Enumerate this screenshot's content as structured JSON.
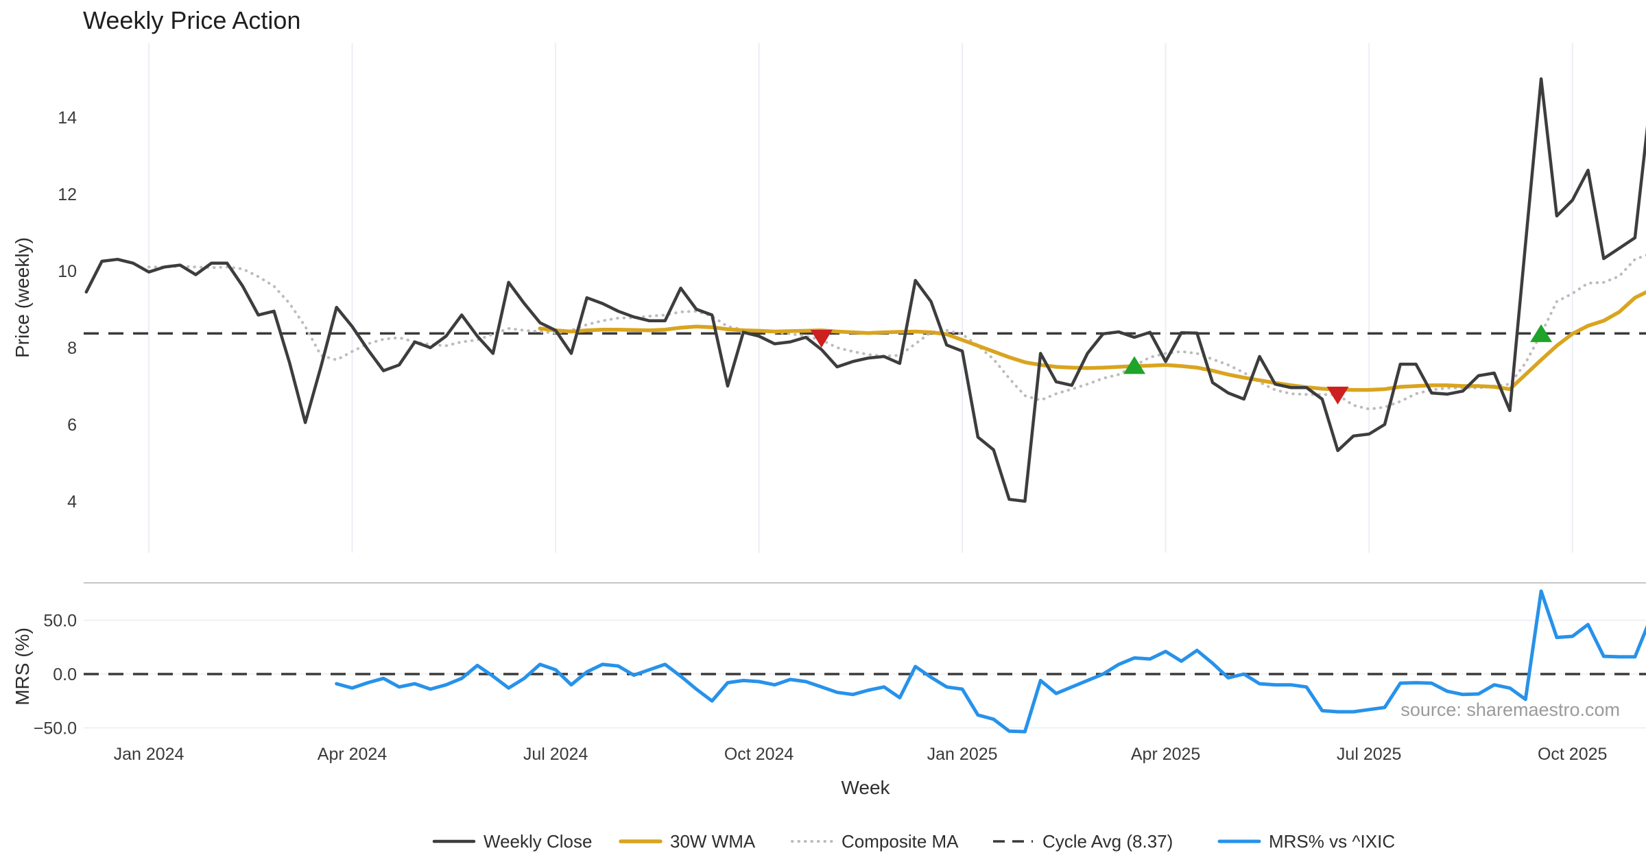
{
  "title": "Weekly Price Action",
  "source_note": "source: sharemaestro.com",
  "colors": {
    "weekly_close": "#3d3d3d",
    "wma_30w": "#d9a41f",
    "composite_ma": "#bcbcbc",
    "cycle_avg": "#3a3a3a",
    "mrs": "#2792ea",
    "sell_marker": "#cd2020",
    "buy_marker": "#1fa32a"
  },
  "legend": [
    {
      "label": "Weekly Close",
      "type": "solid-dark"
    },
    {
      "label": "30W WMA",
      "type": "solid-gold"
    },
    {
      "label": "Composite MA",
      "type": "dotted-gray"
    },
    {
      "label": "Cycle Avg (8.37)",
      "type": "dashed-dark"
    },
    {
      "label": "MRS% vs ^IXIC",
      "type": "solid-blue"
    }
  ],
  "chart_data": {
    "type": "line",
    "title": "Weekly Price Action",
    "xlabel": "Week",
    "x_unit": "weeks_from_2024-01-01",
    "x_ticks": [
      {
        "week": 0,
        "label": "Jan 2024"
      },
      {
        "week": 13,
        "label": "Apr 2024"
      },
      {
        "week": 26,
        "label": "Jul 2024"
      },
      {
        "week": 39,
        "label": "Oct 2024"
      },
      {
        "week": 52,
        "label": "Jan 2025"
      },
      {
        "week": 65,
        "label": "Apr 2025"
      },
      {
        "week": 78,
        "label": "Jul 2025"
      },
      {
        "week": 91,
        "label": "Oct 2025"
      }
    ],
    "panels": [
      {
        "name": "price",
        "ylabel": "Price (weekly)",
        "ylim": [
          2.7,
          15.9
        ],
        "yticks": [
          4,
          6,
          8,
          10,
          12,
          14
        ],
        "grid": "vertical",
        "cycle_avg": 8.37
      },
      {
        "name": "mrs",
        "ylabel": "MRS (%)",
        "ylim": [
          -62,
          84
        ],
        "yticks": [
          {
            "value": 50,
            "label": "50.0"
          },
          {
            "value": 0,
            "label": "0.0"
          },
          {
            "value": -50,
            "label": "−50.0"
          }
        ],
        "grid": "horizontal",
        "zero_line": 0
      }
    ],
    "series": {
      "weekly_close": {
        "label": "Weekly Close",
        "panel": "price",
        "start_week": -4,
        "values": [
          9.45,
          10.25,
          10.3,
          10.2,
          9.97,
          10.1,
          10.15,
          9.9,
          10.2,
          10.2,
          9.6,
          8.85,
          8.95,
          7.6,
          6.05,
          7.5,
          9.05,
          8.55,
          7.95,
          7.4,
          7.55,
          8.15,
          8.0,
          8.3,
          8.85,
          8.3,
          7.85,
          9.7,
          9.15,
          8.65,
          8.45,
          7.85,
          9.3,
          9.15,
          8.95,
          8.8,
          8.7,
          8.7,
          9.55,
          9.0,
          8.85,
          7.0,
          8.4,
          8.3,
          8.1,
          8.15,
          8.27,
          7.95,
          7.5,
          7.64,
          7.73,
          7.77,
          7.59,
          9.75,
          9.2,
          8.07,
          7.91,
          5.67,
          5.34,
          4.05,
          4.0,
          7.85,
          7.11,
          7.02,
          7.85,
          8.36,
          8.41,
          8.27,
          8.4,
          7.64,
          8.39,
          8.38,
          7.09,
          6.82,
          6.66,
          7.77,
          7.05,
          6.96,
          6.96,
          6.66,
          5.32,
          5.7,
          5.75,
          6.0,
          7.57,
          7.57,
          6.82,
          6.79,
          6.87,
          7.27,
          7.34,
          6.36,
          10.7,
          15.0,
          11.43,
          11.84,
          12.62,
          10.32,
          10.59,
          10.86,
          14.5
        ]
      },
      "wma_30w": {
        "label": "30W WMA",
        "panel": "price",
        "start_week": 25,
        "values": [
          8.5,
          8.45,
          8.42,
          8.45,
          8.47,
          8.47,
          8.46,
          8.45,
          8.47,
          8.52,
          8.55,
          8.53,
          8.48,
          8.45,
          8.44,
          8.42,
          8.43,
          8.44,
          8.45,
          8.42,
          8.4,
          8.38,
          8.4,
          8.41,
          8.42,
          8.4,
          8.35,
          8.2,
          8.05,
          7.9,
          7.75,
          7.62,
          7.55,
          7.5,
          7.48,
          7.47,
          7.48,
          7.5,
          7.52,
          7.53,
          7.55,
          7.52,
          7.48,
          7.4,
          7.3,
          7.22,
          7.15,
          7.08,
          7.02,
          6.97,
          6.93,
          6.91,
          6.9,
          6.9,
          6.92,
          6.98,
          7.0,
          7.02,
          7.02,
          7.0,
          7.0,
          6.98,
          6.92,
          7.3,
          7.68,
          8.05,
          8.36,
          8.57,
          8.7,
          8.93,
          9.3,
          9.5
        ]
      },
      "composite_ma": {
        "label": "Composite MA",
        "panel": "price",
        "start_week": 0,
        "values": [
          10.1,
          10.1,
          10.12,
          10.1,
          10.08,
          10.1,
          10.05,
          9.85,
          9.6,
          9.15,
          8.55,
          7.8,
          7.68,
          7.9,
          8.1,
          8.22,
          8.26,
          8.15,
          8.08,
          8.05,
          8.15,
          8.2,
          8.35,
          8.5,
          8.45,
          8.42,
          8.38,
          8.45,
          8.6,
          8.7,
          8.77,
          8.78,
          8.82,
          8.85,
          8.93,
          8.95,
          8.82,
          8.55,
          8.47,
          8.44,
          8.4,
          8.36,
          8.3,
          8.2,
          8.0,
          7.9,
          7.82,
          7.78,
          7.8,
          8.1,
          8.4,
          8.45,
          8.35,
          8.05,
          7.7,
          7.2,
          6.75,
          6.63,
          6.8,
          6.92,
          7.05,
          7.2,
          7.3,
          7.53,
          7.75,
          7.85,
          7.9,
          7.85,
          7.7,
          7.55,
          7.35,
          7.1,
          6.9,
          6.8,
          6.78,
          6.78,
          6.77,
          6.5,
          6.4,
          6.45,
          6.6,
          6.8,
          6.9,
          6.95,
          6.95,
          6.95,
          7.0,
          7.05,
          7.6,
          8.36,
          9.2,
          9.41,
          9.68,
          9.7,
          9.86,
          10.3,
          10.45
        ]
      },
      "cycle_avg": {
        "label": "Cycle Avg (8.37)",
        "panel": "price",
        "value": 8.37
      },
      "mrs": {
        "label": "MRS% vs ^IXIC",
        "panel": "mrs",
        "start_week": 12,
        "values": [
          -9,
          -13,
          -8,
          -4,
          -12,
          -9,
          -14,
          -10,
          -4,
          8,
          -2,
          -13,
          -4,
          9,
          4,
          -10,
          2,
          9,
          7.5,
          -1,
          4,
          9,
          -2,
          -14,
          -25,
          -8,
          -6,
          -7,
          -10,
          -5,
          -7,
          -12,
          -17,
          -19,
          -15,
          -12,
          -22,
          7,
          -3,
          -12,
          -14,
          -38,
          -42,
          -53,
          -53.5,
          -6,
          -18,
          -12,
          -6,
          0,
          9,
          15,
          14,
          21,
          12,
          22,
          10,
          -3.5,
          0,
          -9,
          -10,
          -10,
          -12,
          -34,
          -35,
          -35,
          -33,
          -31,
          -8.5,
          -8,
          -8.5,
          -16,
          -19,
          -18.5,
          -10,
          -13,
          -23.5,
          77,
          34,
          35,
          46,
          16.5,
          16,
          16,
          52
        ]
      }
    },
    "markers": {
      "sell": [
        {
          "week": 43,
          "value": 8.25
        },
        {
          "week": 76,
          "value": 6.77
        }
      ],
      "buy": [
        {
          "week": 63,
          "value": 7.53
        },
        {
          "week": 89,
          "value": 8.36
        }
      ]
    },
    "legend_position": "bottom-center"
  }
}
